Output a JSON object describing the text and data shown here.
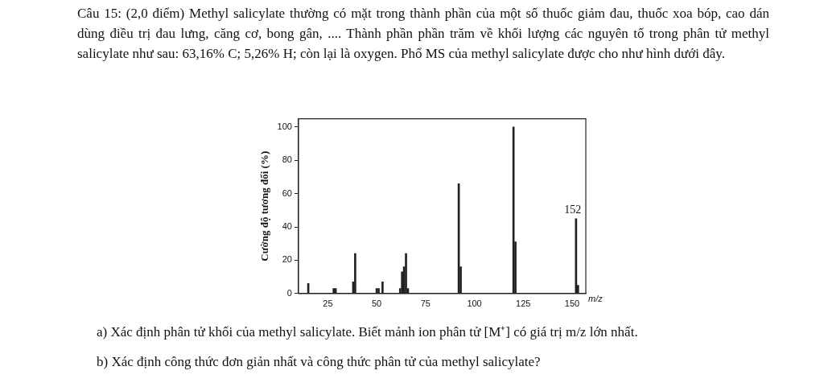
{
  "chart_data": {
    "type": "bar",
    "title": "Câu 15: (2,0 điểm) Methyl salicylate thường có mặt trong thành phần của một số thuốc giảm đau, thuốc xoa bóp, cao dán dùng điều trị đau lưng, căng cơ, bong gân, .... Thành phần phần trăm về khối lượng các nguyên tố trong phân tử methyl salicylate như sau: 63,16% C; 5,26% H; còn lại là oxygen. Phổ MS của methyl salicylate được cho như hình dưới đây.",
    "xlabel": "m/z",
    "ylabel": "Cường độ tương đối (%)",
    "x": [
      15,
      28,
      29,
      38,
      39,
      50,
      51,
      53,
      62,
      63,
      64,
      65,
      66,
      92,
      93,
      120,
      121,
      152,
      153
    ],
    "series": [
      {
        "color": "#222222",
        "values": [
          6,
          3,
          3,
          7,
          24,
          3,
          3,
          7,
          3,
          13,
          16,
          24,
          3,
          66,
          16,
          100,
          31,
          45,
          5
        ]
      }
    ],
    "xlim": [
      10,
      157
    ],
    "xticks": [
      25,
      50,
      75,
      100,
      125,
      150
    ],
    "ylim": [
      0,
      105
    ],
    "yticks": [
      0,
      20,
      40,
      60,
      80,
      100
    ],
    "annotations": [
      {
        "text": "152",
        "x": 152,
        "y": 45
      },
      "a) Xác định phân tử khối của methyl salicylate. Biết mảnh ion phân tử [M⁺] có giá trị m/z lớn nhất.",
      "b) Xác định công thức đơn giản nhất và công thức phân tử của methyl salicylate?"
    ],
    "grid": false,
    "legend": false
  }
}
